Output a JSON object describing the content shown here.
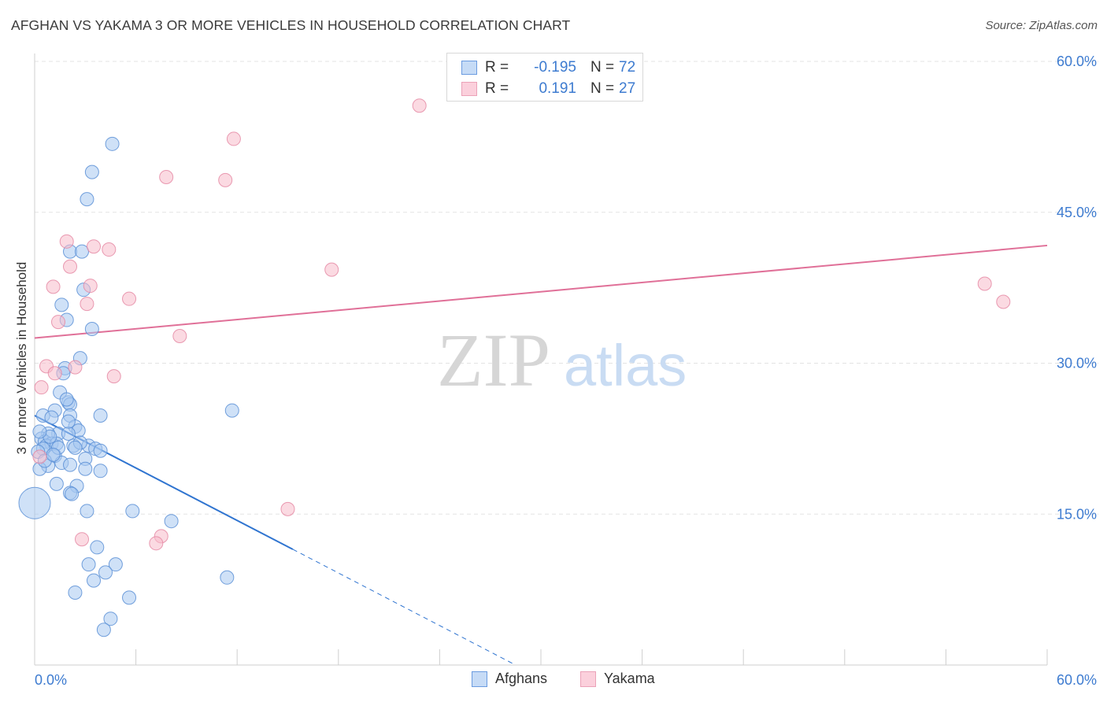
{
  "header": {
    "title": "AFGHAN VS YAKAMA 3 OR MORE VEHICLES IN HOUSEHOLD CORRELATION CHART",
    "source": "Source: ZipAtlas.com"
  },
  "watermark": {
    "zip": "ZIP",
    "atlas": "atlas"
  },
  "colors": {
    "afghans_fill": "#a8c8f0",
    "afghans_stroke": "#5b8fd6",
    "afghans_line": "#2f74d0",
    "yakama_fill": "#f8bccb",
    "yakama_stroke": "#e58aa5",
    "yakama_line": "#e07098",
    "tick_label": "#3d7bd0",
    "grid": "#e3e3e3"
  },
  "legend": {
    "rows": [
      {
        "r_label": "R =",
        "r_value": "-0.195",
        "n_label": "N =",
        "n_value": "72",
        "series": "afghans"
      },
      {
        "r_label": "R =",
        "r_value": "0.191",
        "n_label": "N =",
        "n_value": "27",
        "series": "yakama"
      }
    ]
  },
  "bottom_legend": {
    "afghans": "Afghans",
    "yakama": "Yakama"
  },
  "chart_data": {
    "type": "scatter",
    "title": "AFGHAN VS YAKAMA 3 OR MORE VEHICLES IN HOUSEHOLD CORRELATION CHART",
    "xlabel": "",
    "ylabel": "3 or more Vehicles in Household",
    "xlim": [
      0,
      60
    ],
    "ylim": [
      0,
      60
    ],
    "x_tick_labels": {
      "min": "0.0%",
      "max": "60.0%"
    },
    "y_ticks": [
      15,
      30,
      45,
      60
    ],
    "y_tick_labels": [
      "15.0%",
      "30.0%",
      "45.0%",
      "60.0%"
    ],
    "grid": true,
    "series": [
      {
        "name": "Afghans",
        "r": -0.195,
        "n": 72,
        "trend": {
          "x0": 0,
          "y0": 24.8,
          "x1": 15.3,
          "y1": 11.5,
          "dash_to_x": 28.5,
          "dash_to_y": 0
        },
        "points": [
          [
            4.6,
            51.8
          ],
          [
            3.4,
            49.0
          ],
          [
            3.1,
            46.3
          ],
          [
            2.1,
            41.1
          ],
          [
            2.8,
            41.1
          ],
          [
            2.9,
            37.3
          ],
          [
            1.6,
            35.8
          ],
          [
            1.9,
            34.3
          ],
          [
            3.4,
            33.4
          ],
          [
            2.7,
            30.5
          ],
          [
            1.8,
            29.5
          ],
          [
            1.7,
            29.0
          ],
          [
            1.5,
            27.1
          ],
          [
            2.0,
            26.1
          ],
          [
            2.1,
            25.9
          ],
          [
            1.2,
            25.3
          ],
          [
            0.5,
            24.8
          ],
          [
            1.0,
            24.6
          ],
          [
            2.1,
            24.8
          ],
          [
            3.9,
            24.8
          ],
          [
            2.4,
            23.7
          ],
          [
            1.4,
            23.0
          ],
          [
            0.8,
            23.0
          ],
          [
            2.6,
            23.3
          ],
          [
            2.0,
            23.0
          ],
          [
            0.4,
            22.5
          ],
          [
            0.6,
            22.2
          ],
          [
            1.0,
            22.0
          ],
          [
            0.7,
            21.8
          ],
          [
            1.3,
            22.0
          ],
          [
            2.3,
            21.8
          ],
          [
            3.2,
            21.8
          ],
          [
            0.5,
            21.5
          ],
          [
            0.2,
            21.2
          ],
          [
            3.6,
            21.5
          ],
          [
            3.9,
            21.3
          ],
          [
            1.2,
            20.8
          ],
          [
            1.6,
            20.1
          ],
          [
            3.0,
            20.5
          ],
          [
            2.1,
            19.9
          ],
          [
            0.8,
            19.8
          ],
          [
            0.3,
            19.5
          ],
          [
            3.0,
            19.5
          ],
          [
            3.9,
            19.3
          ],
          [
            1.3,
            18.0
          ],
          [
            2.5,
            17.8
          ],
          [
            2.1,
            17.1
          ],
          [
            2.2,
            17.0
          ],
          [
            0.0,
            16.1
          ],
          [
            3.1,
            15.3
          ],
          [
            5.8,
            15.3
          ],
          [
            8.1,
            14.3
          ],
          [
            11.7,
            25.3
          ],
          [
            3.7,
            11.7
          ],
          [
            3.2,
            10.0
          ],
          [
            4.8,
            10.0
          ],
          [
            4.2,
            9.2
          ],
          [
            3.5,
            8.4
          ],
          [
            11.4,
            8.7
          ],
          [
            2.4,
            7.2
          ],
          [
            5.6,
            6.7
          ],
          [
            4.5,
            4.6
          ],
          [
            4.1,
            3.5
          ],
          [
            0.9,
            22.7
          ],
          [
            1.4,
            21.6
          ],
          [
            0.6,
            20.3
          ],
          [
            2.7,
            22.1
          ],
          [
            1.9,
            26.4
          ],
          [
            2.4,
            21.6
          ],
          [
            0.3,
            23.2
          ],
          [
            1.1,
            20.9
          ],
          [
            2.0,
            24.2
          ]
        ]
      },
      {
        "name": "Yakama",
        "r": 0.191,
        "n": 27,
        "trend": {
          "x0": 0,
          "y0": 32.5,
          "x1": 60,
          "y1": 41.7
        },
        "points": [
          [
            22.8,
            55.6
          ],
          [
            11.8,
            52.3
          ],
          [
            11.3,
            48.2
          ],
          [
            7.8,
            48.5
          ],
          [
            1.9,
            42.1
          ],
          [
            3.5,
            41.6
          ],
          [
            4.4,
            41.3
          ],
          [
            17.6,
            39.3
          ],
          [
            2.1,
            39.6
          ],
          [
            1.1,
            37.6
          ],
          [
            3.3,
            37.7
          ],
          [
            56.3,
            37.9
          ],
          [
            57.4,
            36.1
          ],
          [
            5.6,
            36.4
          ],
          [
            3.1,
            35.9
          ],
          [
            1.4,
            34.1
          ],
          [
            8.6,
            32.7
          ],
          [
            0.7,
            29.7
          ],
          [
            2.4,
            29.6
          ],
          [
            1.2,
            29.0
          ],
          [
            4.7,
            28.7
          ],
          [
            0.4,
            27.6
          ],
          [
            0.3,
            20.7
          ],
          [
            15.0,
            15.5
          ],
          [
            2.8,
            12.5
          ],
          [
            7.5,
            12.8
          ],
          [
            7.2,
            12.1
          ]
        ]
      }
    ]
  }
}
